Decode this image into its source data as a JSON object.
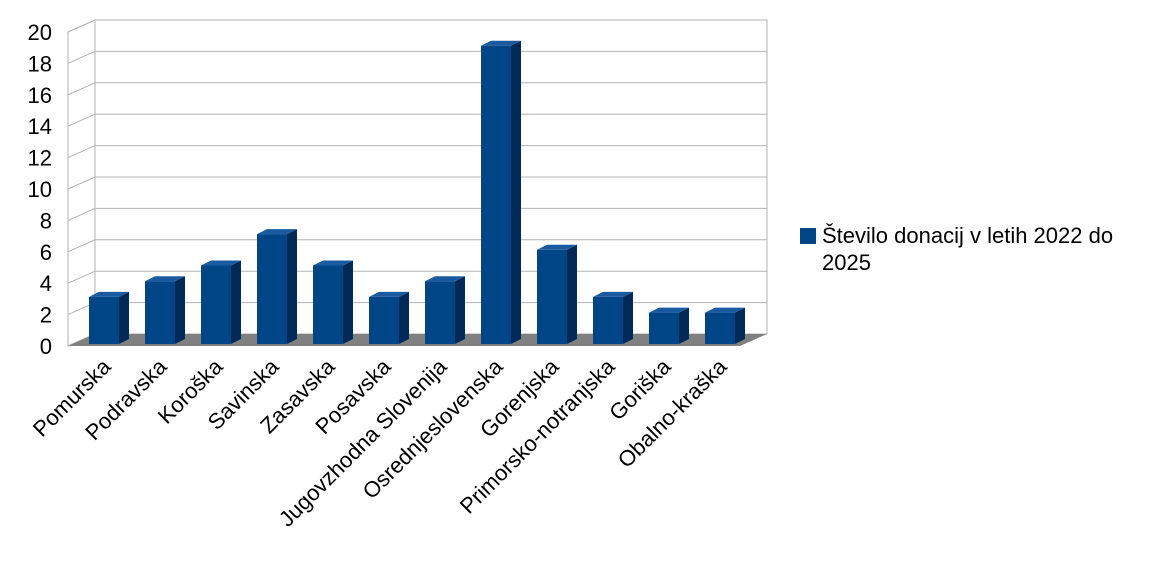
{
  "chart_data": {
    "type": "bar",
    "categories": [
      "Pomurska",
      "Podravska",
      "Koroška",
      "Savinska",
      "Zasavska",
      "Posavska",
      "Jugovzhodna Slovenija",
      "Osrednjeslovenska",
      "Gorenjska",
      "Primorsko-notranjska",
      "Goriška",
      "Obalno-kraška"
    ],
    "series": [
      {
        "name": "Število donacij v letih 2022 do 2025",
        "values": [
          3,
          4,
          5,
          7,
          5,
          3,
          4,
          19,
          6,
          3,
          2,
          2
        ]
      }
    ],
    "ylim": [
      0,
      20
    ],
    "yticks": [
      0,
      2,
      4,
      6,
      8,
      10,
      12,
      14,
      16,
      18,
      20
    ],
    "grid": true,
    "legend": "right",
    "style": "3d-bar",
    "colors": {
      "bar": "#004586",
      "bar_top": "#1a5aa0",
      "bar_side": "#002a55",
      "floor": "#808080",
      "grid": "#b3b3b3"
    }
  }
}
